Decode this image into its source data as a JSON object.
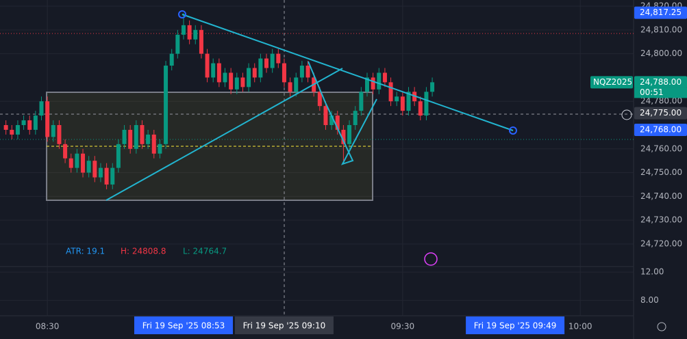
{
  "chart_data": {
    "type": "candlestick",
    "up_color": "#089981",
    "down_color": "#f23645",
    "ylim": [
      24710.5,
      24822.6
    ],
    "yticks": [
      {
        "value": 24820,
        "label": "24,820.00"
      },
      {
        "value": 24810,
        "label": "24,810.00"
      },
      {
        "value": 24800,
        "label": "24,800.00"
      },
      {
        "value": 24780,
        "label": "24,780.00"
      },
      {
        "value": 24760,
        "label": "24,760.00"
      },
      {
        "value": 24750,
        "label": "24,750.00"
      },
      {
        "value": 24740,
        "label": "24,740.00"
      },
      {
        "value": 24730,
        "label": "24,730.00"
      },
      {
        "value": 24720,
        "label": "24,720.00"
      }
    ],
    "y2lim": [
      5.8,
      12.5
    ],
    "y2ticks": [
      {
        "value": 12,
        "label": "12.00"
      },
      {
        "value": 8,
        "label": "8.00"
      }
    ],
    "xlim": [
      "08:22",
      "10:09"
    ],
    "xticks": [
      "08:30",
      "09:30",
      "10:00"
    ],
    "time_markers": [
      {
        "value": "08:53",
        "label": "Fri 19 Sep '25  08:53",
        "color": "#2962ff"
      },
      {
        "value": "09:10",
        "label": "Fri 19 Sep '25  09:10",
        "color": "#363a45"
      },
      {
        "value": "09:49",
        "label": "Fri 19 Sep '25  09:49",
        "color": "#2962ff"
      }
    ],
    "price_labels": [
      {
        "value": 24817.25,
        "label": "24,817.25",
        "color": "#2962ff"
      },
      {
        "value": 24788,
        "label": "24,788.00",
        "color": "#089981"
      },
      {
        "value": 24775,
        "label": "24,775.00",
        "color": "#363a45"
      },
      {
        "value": 24768,
        "label": "24,768.00",
        "color": "#2962ff"
      }
    ],
    "symbol": "NQZ2025",
    "countdown": "00:51",
    "legend": [
      "ATR: 19.1",
      "H: 24808.8",
      "L: 24764.7"
    ],
    "x": [
      "08:23",
      "08:24",
      "08:25",
      "08:26",
      "08:27",
      "08:28",
      "08:29",
      "08:30",
      "08:31",
      "08:32",
      "08:33",
      "08:34",
      "08:35",
      "08:36",
      "08:37",
      "08:38",
      "08:39",
      "08:40",
      "08:41",
      "08:42",
      "08:43",
      "08:44",
      "08:45",
      "08:46",
      "08:47",
      "08:48",
      "08:49",
      "08:50",
      "08:51",
      "08:52",
      "08:53",
      "08:54",
      "08:55",
      "08:56",
      "08:57",
      "08:58",
      "08:59",
      "09:00",
      "09:01",
      "09:02",
      "09:03",
      "09:04",
      "09:05",
      "09:06",
      "09:07",
      "09:08",
      "09:09",
      "09:10",
      "09:11",
      "09:12",
      "09:13",
      "09:14",
      "09:15",
      "09:16",
      "09:17",
      "09:18",
      "09:19",
      "09:20",
      "09:21",
      "09:22",
      "09:23",
      "09:24",
      "09:25",
      "09:26",
      "09:27",
      "09:28",
      "09:29",
      "09:30",
      "09:31",
      "09:32",
      "09:33",
      "09:34",
      "09:35"
    ],
    "ohlc": [
      [
        24770,
        24772,
        24766,
        24768
      ],
      [
        24768,
        24770,
        24764,
        24766
      ],
      [
        24766,
        24772,
        24764,
        24770
      ],
      [
        24770,
        24774,
        24768,
        24772
      ],
      [
        24772,
        24774,
        24766,
        24768
      ],
      [
        24768,
        24776,
        24766,
        24774
      ],
      [
        24774,
        24782,
        24772,
        24780
      ],
      [
        24780,
        24782,
        24763,
        24765
      ],
      [
        24765,
        24772,
        24763,
        24770
      ],
      [
        24770,
        24772,
        24760,
        24762
      ],
      [
        24762,
        24764,
        24754,
        24756
      ],
      [
        24756,
        24758,
        24750,
        24752
      ],
      [
        24752,
        24760,
        24750,
        24758
      ],
      [
        24758,
        24760,
        24748,
        24750
      ],
      [
        24750,
        24757,
        24748,
        24755
      ],
      [
        24755,
        24757,
        24746,
        24748
      ],
      [
        24748,
        24754,
        24746,
        24752
      ],
      [
        24752,
        24754,
        24743,
        24745
      ],
      [
        24745,
        24754,
        24743,
        24752
      ],
      [
        24752,
        24764,
        24750,
        24762
      ],
      [
        24762,
        24770,
        24760,
        24768
      ],
      [
        24768,
        24770,
        24758,
        24760
      ],
      [
        24760,
        24772,
        24758,
        24770
      ],
      [
        24770,
        24772,
        24760,
        24762
      ],
      [
        24762,
        24768,
        24760,
        24766
      ],
      [
        24766,
        24768,
        24756,
        24758
      ],
      [
        24758,
        24764,
        24756,
        24762
      ],
      [
        24762,
        24797,
        24760,
        24795
      ],
      [
        24795,
        24802,
        24793,
        24800
      ],
      [
        24800,
        24810,
        24798,
        24808
      ],
      [
        24808,
        24817,
        24806,
        24812
      ],
      [
        24812,
        24814,
        24804,
        24806
      ],
      [
        24806,
        24812,
        24804,
        24810
      ],
      [
        24810,
        24812,
        24798,
        24800
      ],
      [
        24800,
        24802,
        24788,
        24790
      ],
      [
        24790,
        24798,
        24788,
        24796
      ],
      [
        24796,
        24798,
        24786,
        24788
      ],
      [
        24788,
        24794,
        24786,
        24792
      ],
      [
        24792,
        24794,
        24783,
        24785
      ],
      [
        24785,
        24792,
        24783,
        24790
      ],
      [
        24790,
        24792,
        24784,
        24786
      ],
      [
        24786,
        24796,
        24784,
        24794
      ],
      [
        24794,
        24796,
        24788,
        24790
      ],
      [
        24790,
        24800,
        24788,
        24798
      ],
      [
        24798,
        24800,
        24792,
        24794
      ],
      [
        24794,
        24802,
        24792,
        24800
      ],
      [
        24800,
        24802,
        24794,
        24796
      ],
      [
        24796,
        24798,
        24786,
        24788
      ],
      [
        24788,
        24790,
        24782,
        24784
      ],
      [
        24784,
        24792,
        24782,
        24790
      ],
      [
        24790,
        24797,
        24788,
        24795
      ],
      [
        24795,
        24797,
        24788,
        24790
      ],
      [
        24790,
        24792,
        24782,
        24784
      ],
      [
        24784,
        24786,
        24776,
        24778
      ],
      [
        24778,
        24780,
        24768,
        24770
      ],
      [
        24770,
        24776,
        24768,
        24774
      ],
      [
        24774,
        24776,
        24766,
        24768
      ],
      [
        24768,
        24770,
        24755,
        24762
      ],
      [
        24762,
        24772,
        24760,
        24770
      ],
      [
        24770,
        24778,
        24768,
        24776
      ],
      [
        24776,
        24786,
        24774,
        24784
      ],
      [
        24784,
        24792,
        24782,
        24790
      ],
      [
        24790,
        24792,
        24783,
        24785
      ],
      [
        24785,
        24794,
        24783,
        24792
      ],
      [
        24792,
        24794,
        24786,
        24788
      ],
      [
        24788,
        24790,
        24778,
        24780
      ],
      [
        24780,
        24784,
        24778,
        24782
      ],
      [
        24782,
        24784,
        24774,
        24776
      ],
      [
        24776,
        24786,
        24774,
        24784
      ],
      [
        24784,
        24786,
        24778,
        24780
      ],
      [
        24780,
        24782,
        24772,
        24774
      ],
      [
        24774,
        24786,
        24772,
        24784
      ],
      [
        24784,
        24790,
        24782,
        24788
      ]
    ]
  }
}
